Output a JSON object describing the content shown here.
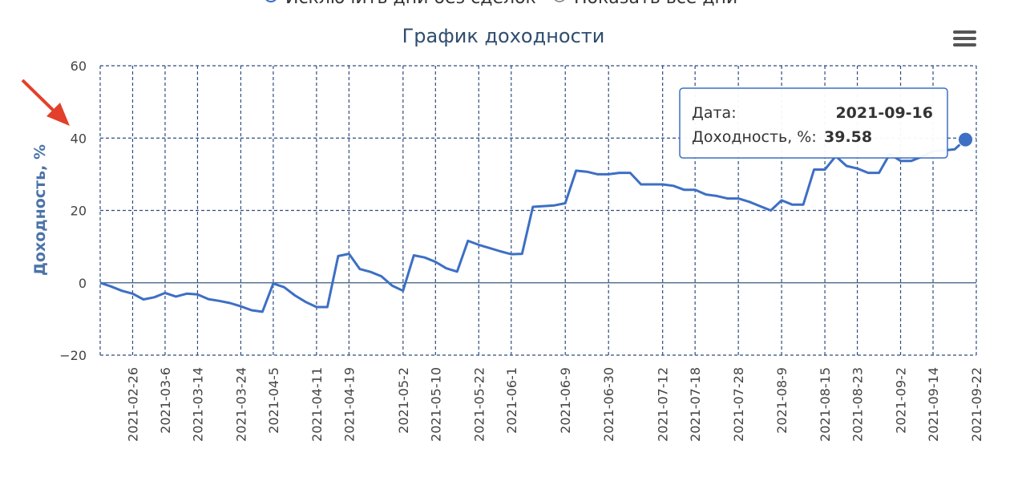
{
  "controls": {
    "options": [
      "Исключить дни без сделок",
      "Показать все дни"
    ]
  },
  "tooltip": {
    "date_label": "Дата:",
    "date": "2021-09-16",
    "value_label": "Доходность, %:",
    "value": "39.58"
  },
  "chart_data": {
    "type": "line",
    "title": "График доходности",
    "y_label": "Доходность, %",
    "categories": [
      null,
      null,
      null,
      "2021-02-26",
      null,
      null,
      "2021-03-6",
      null,
      null,
      "2021-03-14",
      null,
      null,
      null,
      "2021-03-24",
      null,
      null,
      "2021-04-5",
      null,
      null,
      null,
      "2021-04-11",
      null,
      null,
      "2021-04-19",
      null,
      null,
      null,
      null,
      "2021-05-2",
      null,
      null,
      "2021-05-10",
      null,
      null,
      null,
      "2021-05-22",
      null,
      null,
      "2021-06-1",
      null,
      null,
      null,
      null,
      "2021-06-9",
      null,
      null,
      null,
      "2021-06-30",
      null,
      null,
      null,
      null,
      "2021-07-12",
      null,
      null,
      "2021-07-18",
      null,
      null,
      null,
      "2021-07-28",
      null,
      null,
      null,
      "2021-08-9",
      null,
      null,
      null,
      "2021-08-15",
      null,
      null,
      "2021-08-23",
      null,
      null,
      null,
      "2021-09-2",
      null,
      null,
      "2021-09-14",
      null,
      null,
      null,
      "2021-09-22"
    ],
    "series": [
      {
        "name": "Доходность, %",
        "color": "#3d6fc4",
        "values": [
          0,
          -1,
          -2.2,
          -3,
          -4.6,
          -4,
          -2.8,
          -3.8,
          -3,
          -3.2,
          -4.5,
          -5,
          -5.6,
          -6.5,
          -7.6,
          -8,
          -0.2,
          -1.2,
          -3.5,
          -5.3,
          -6.7,
          -6.7,
          7.4,
          8,
          3.8,
          3,
          1.8,
          -0.8,
          -2.2,
          7.6,
          7,
          5.8,
          4,
          3.1,
          11.6,
          10.5,
          9.6,
          8.7,
          7.9,
          8,
          21,
          21.2,
          21.4,
          22,
          31,
          30.7,
          30,
          30,
          30.4,
          30.4,
          27.2,
          27.2,
          27.2,
          26.8,
          25.7,
          25.7,
          24.4,
          24,
          23.3,
          23.3,
          22.4,
          21.2,
          20,
          22.8,
          21.6,
          21.6,
          31.3,
          31.3,
          35,
          32.3,
          31.6,
          30.4,
          30.4,
          35.6,
          33.7,
          33.7,
          34.9,
          36.4,
          36.6,
          36.9,
          39.58,
          null
        ]
      }
    ],
    "ylim": [
      -20,
      60
    ],
    "yticks": [
      {
        "value": -20,
        "label": "−20"
      },
      0,
      20,
      40,
      60
    ],
    "grid": true
  }
}
